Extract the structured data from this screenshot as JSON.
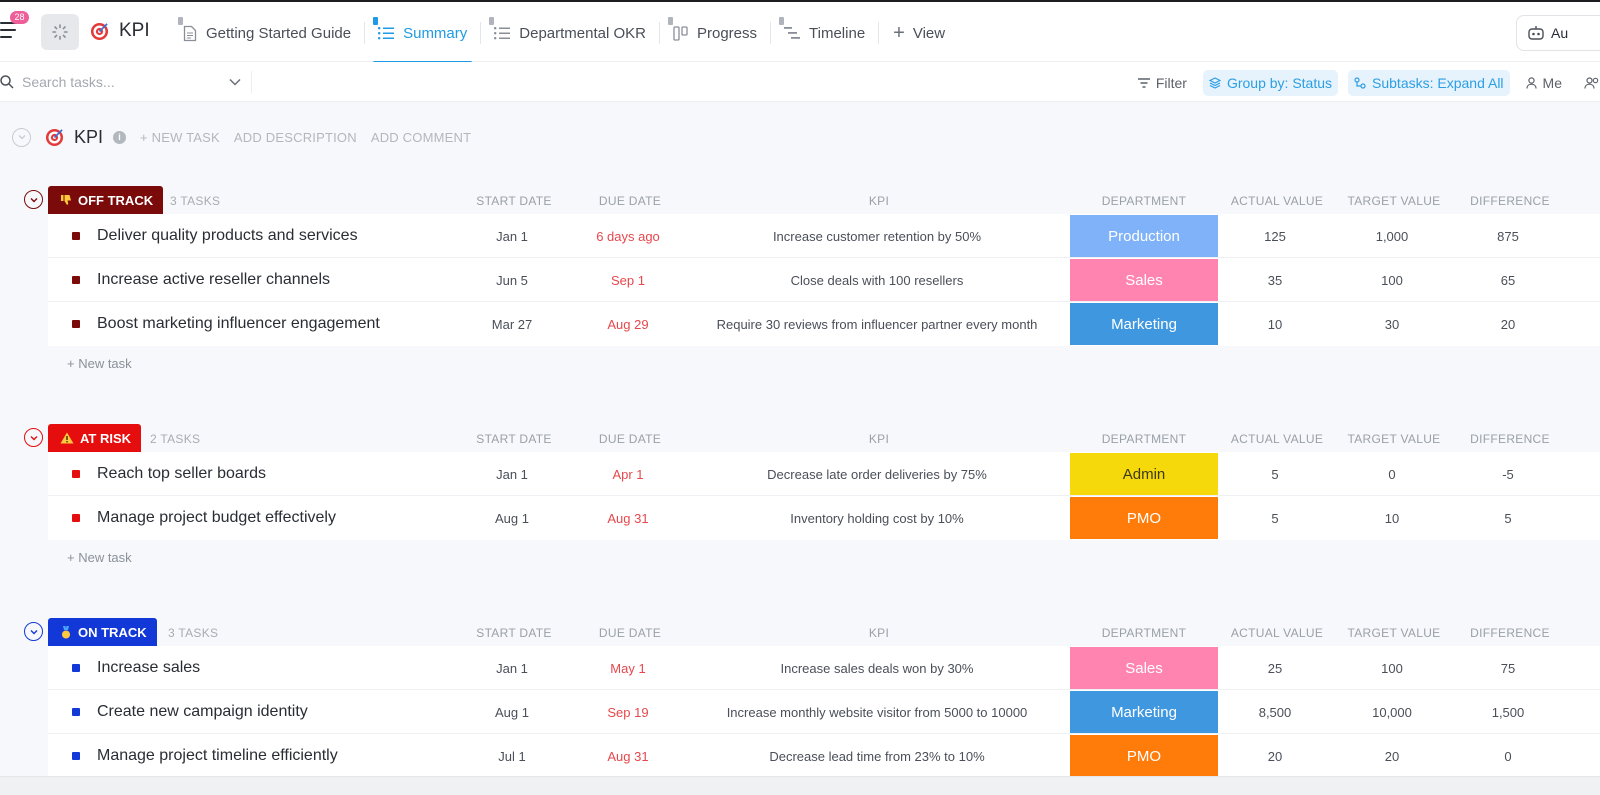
{
  "topbar": {
    "notification_count": "28",
    "space_title": "KPI",
    "tabs": [
      {
        "label": "Getting Started Guide",
        "icon": "doc-icon"
      },
      {
        "label": "Summary",
        "icon": "list-icon",
        "active": true
      },
      {
        "label": "Departmental OKR",
        "icon": "list-icon"
      },
      {
        "label": "Progress",
        "icon": "board-icon"
      },
      {
        "label": "Timeline",
        "icon": "timeline-icon"
      }
    ],
    "add_view_label": "View",
    "auto_label": "Au"
  },
  "toolbar": {
    "search_placeholder": "Search tasks...",
    "filter_label": "Filter",
    "group_by_label": "Group by: Status",
    "subtasks_label": "Subtasks: Expand All",
    "me_label": "Me"
  },
  "list": {
    "title": "KPI",
    "new_task": "+ NEW TASK",
    "add_description": "ADD DESCRIPTION",
    "add_comment": "ADD COMMENT"
  },
  "columns": {
    "start_date": "START DATE",
    "due_date": "DUE DATE",
    "kpi": "KPI",
    "department": "DEPARTMENT",
    "actual_value": "ACTUAL VALUE",
    "target_value": "TARGET VALUE",
    "difference": "DIFFERENCE"
  },
  "new_task_row": "+ New task",
  "groups": [
    {
      "status": "OFF TRACK",
      "status_color": "#7b0a0a",
      "icon": "thumbs-down-icon",
      "count": "3 TASKS",
      "tasks": [
        {
          "name": "Deliver quality products and services",
          "start": "Jan 1",
          "due": "6 days ago",
          "kpi": "Increase customer retention by 50%",
          "dept": "Production",
          "dept_color": "#7fb2f8",
          "actual": "125",
          "target": "1,000",
          "diff": "875"
        },
        {
          "name": "Increase active reseller channels",
          "start": "Jun 5",
          "due": "Sep 1",
          "kpi": "Close deals with 100 resellers",
          "dept": "Sales",
          "dept_color": "#ff85b0",
          "actual": "35",
          "target": "100",
          "diff": "65"
        },
        {
          "name": "Boost marketing influencer engagement",
          "start": "Mar 27",
          "due": "Aug 29",
          "kpi": "Require 30 reviews from influencer partner every month",
          "dept": "Marketing",
          "dept_color": "#3f97e0",
          "actual": "10",
          "target": "30",
          "diff": "20"
        }
      ]
    },
    {
      "status": "AT RISK",
      "status_color": "#e50d0d",
      "icon": "warning-icon",
      "count": "2 TASKS",
      "tasks": [
        {
          "name": "Reach top seller boards",
          "start": "Jan 1",
          "due": "Apr 1",
          "kpi": "Decrease late order deliveries by 75%",
          "dept": "Admin",
          "dept_color": "#f5d90a",
          "dept_text_dark": true,
          "actual": "5",
          "target": "0",
          "diff": "-5"
        },
        {
          "name": "Manage project budget effectively",
          "start": "Aug 1",
          "due": "Aug 31",
          "kpi": "Inventory holding cost by 10%",
          "dept": "PMO",
          "dept_color": "#ff7b0a",
          "actual": "5",
          "target": "10",
          "diff": "5"
        }
      ]
    },
    {
      "status": "ON TRACK",
      "status_color": "#1338d8",
      "icon": "medal-icon",
      "count": "3 TASKS",
      "tasks": [
        {
          "name": "Increase sales",
          "start": "Jan 1",
          "due": "May 1",
          "kpi": "Increase sales deals won by 30%",
          "dept": "Sales",
          "dept_color": "#ff85b0",
          "actual": "25",
          "target": "100",
          "diff": "75"
        },
        {
          "name": "Create new campaign identity",
          "start": "Aug 1",
          "due": "Sep 19",
          "kpi": "Increase monthly website visitor from 5000 to 10000",
          "dept": "Marketing",
          "dept_color": "#3f97e0",
          "actual": "8,500",
          "target": "10,000",
          "diff": "1,500"
        },
        {
          "name": "Manage project timeline efficiently",
          "start": "Jul 1",
          "due": "Aug 31",
          "kpi": "Decrease lead time from 23% to 10%",
          "dept": "PMO",
          "dept_color": "#ff7b0a",
          "actual": "20",
          "target": "20",
          "diff": "0"
        }
      ]
    }
  ]
}
